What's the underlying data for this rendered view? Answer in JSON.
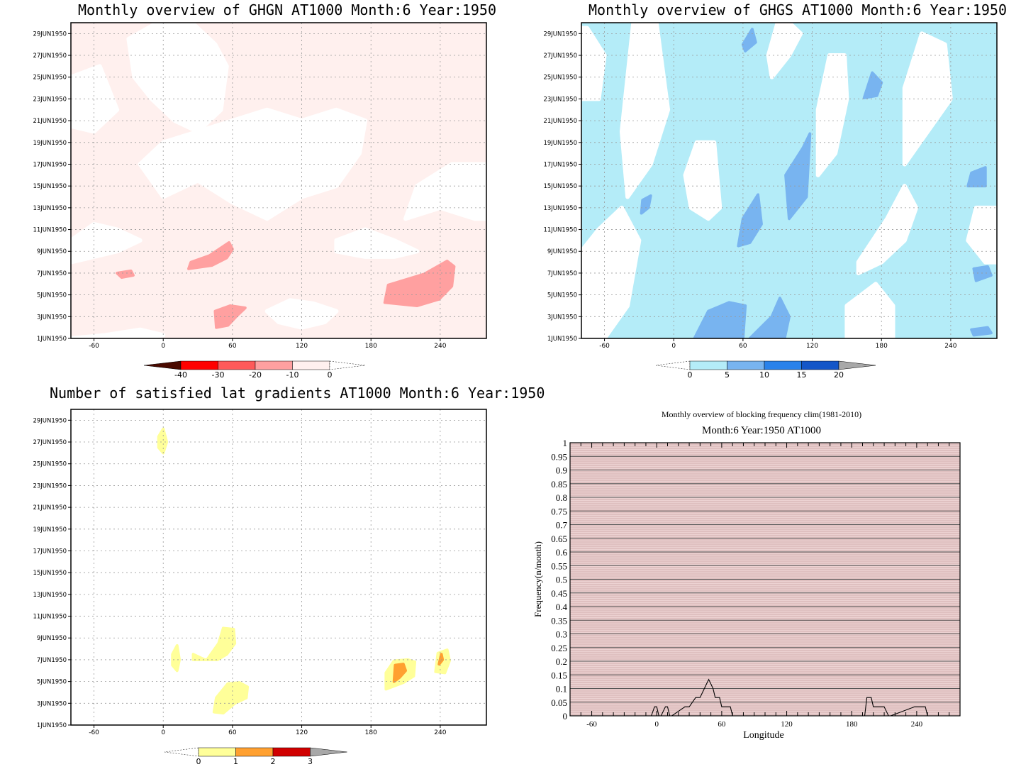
{
  "chart_data": [
    {
      "type": "heatmap",
      "title": "Monthly overview of GHGN AT1000 Month:6 Year:1950",
      "x_ticks": [
        -60,
        0,
        60,
        120,
        180,
        240
      ],
      "y_ticks": [
        "1JUN1950",
        "3JUN1950",
        "5JUN1950",
        "7JUN1950",
        "9JUN1950",
        "11JUN1950",
        "13JUN1950",
        "15JUN1950",
        "17JUN1950",
        "19JUN1950",
        "21JUN1950",
        "23JUN1950",
        "25JUN1950",
        "27JUN1950",
        "29JUN1950"
      ],
      "xlim": [
        -80,
        280
      ],
      "ylim": [
        1,
        30
      ],
      "grid": true,
      "colorbar": {
        "labels": [
          "-40",
          "-30",
          "-20",
          "-10",
          "0"
        ],
        "colors": [
          "#4a0a00",
          "#ff0000",
          "#ff5a5a",
          "#ffa0a0",
          "#fff0ee"
        ]
      },
      "regions": [
        {
          "level": "-10",
          "color": "#ffa0a0",
          "x": [
            40,
            57,
            60,
            55,
            42,
            22,
            24
          ],
          "y": [
            8.6,
            9.8,
            9.2,
            8.4,
            7.7,
            7.4,
            8.0
          ]
        },
        {
          "level": "-10",
          "color": "#ffa0a0",
          "x": [
            -40,
            -28,
            -26,
            -36
          ],
          "y": [
            7.0,
            7.2,
            6.8,
            6.6
          ]
        },
        {
          "level": "-10",
          "color": "#ffa0a0",
          "x": [
            45,
            58,
            71,
            64,
            56,
            46
          ],
          "y": [
            3.5,
            4.0,
            3.8,
            3.1,
            2.2,
            2.0
          ]
        },
        {
          "level": "-10",
          "color": "#ffa0a0",
          "x": [
            192,
            220,
            239,
            250,
            252,
            246,
            226,
            195
          ],
          "y": [
            4.3,
            4.0,
            4.6,
            5.8,
            7.6,
            8.1,
            6.9,
            5.9
          ]
        }
      ]
    },
    {
      "type": "heatmap",
      "title": "Monthly overview of GHGS AT1000 Month:6 Year:1950",
      "x_ticks": [
        -60,
        0,
        60,
        120,
        180,
        240
      ],
      "y_ticks": [
        "1JUN1950",
        "3JUN1950",
        "5JUN1950",
        "7JUN1950",
        "9JUN1950",
        "11JUN1950",
        "13JUN1950",
        "15JUN1950",
        "17JUN1950",
        "19JUN1950",
        "21JUN1950",
        "23JUN1950",
        "25JUN1950",
        "27JUN1950",
        "29JUN1950"
      ],
      "xlim": [
        -80,
        280
      ],
      "ylim": [
        1,
        30
      ],
      "grid": true,
      "colorbar": {
        "labels": [
          "0",
          "5",
          "10",
          "15",
          "20"
        ],
        "colors": [
          "#b4ecf8",
          "#78b4f0",
          "#2a82ea",
          "#1456c8",
          "#a8a8a8"
        ]
      },
      "regions": [
        {
          "level": "5",
          "color": "#78b4f0",
          "x": [
            18,
            30,
            48,
            62,
            60,
            42,
            30
          ],
          "y": [
            1.0,
            3.5,
            4.3,
            4.0,
            1.0,
            1.0,
            1.0
          ]
        },
        {
          "level": "5",
          "color": "#78b4f0",
          "x": [
            66,
            85,
            92,
            100,
            96,
            80,
            70
          ],
          "y": [
            1.0,
            3.0,
            4.7,
            3.0,
            1.0,
            1.0,
            1.0
          ]
        },
        {
          "level": "5",
          "color": "#78b4f0",
          "x": [
            56,
            66,
            76,
            73,
            60
          ],
          "y": [
            9.5,
            9.8,
            11.5,
            14.2,
            12.0
          ]
        },
        {
          "level": "5",
          "color": "#78b4f0",
          "x": [
            97,
            112,
            118,
            115,
            100
          ],
          "y": [
            16.0,
            18.5,
            19.8,
            14.0,
            12.0
          ]
        },
        {
          "level": "5",
          "color": "#78b4f0",
          "x": [
            165,
            176,
            180,
            172
          ],
          "y": [
            23.1,
            23.3,
            24.5,
            25.4
          ]
        },
        {
          "level": "5",
          "color": "#78b4f0",
          "x": [
            60,
            68,
            71,
            62
          ],
          "y": [
            28.0,
            29.4,
            28.2,
            27.4
          ]
        },
        {
          "level": "5",
          "color": "#78b4f0",
          "x": [
            255,
            270,
            270,
            258
          ],
          "y": [
            15.0,
            15.0,
            16.7,
            16.2
          ]
        },
        {
          "level": "5",
          "color": "#78b4f0",
          "x": [
            262,
            275,
            272,
            260
          ],
          "y": [
            6.3,
            6.8,
            7.6,
            7.4
          ]
        },
        {
          "level": "5",
          "color": "#78b4f0",
          "x": [
            260,
            275,
            272,
            258
          ],
          "y": [
            1.3,
            1.5,
            2.0,
            1.8
          ]
        },
        {
          "level": "5",
          "color": "#78b4f0",
          "x": [
            -28,
            -22,
            -20,
            -27
          ],
          "y": [
            12.5,
            13.0,
            14.1,
            13.7
          ]
        }
      ]
    },
    {
      "type": "heatmap",
      "title": "Number of satisfied lat gradients AT1000 Month:6 Year:1950",
      "x_ticks": [
        -60,
        0,
        60,
        120,
        180,
        240
      ],
      "y_ticks": [
        "1JUN1950",
        "3JUN1950",
        "5JUN1950",
        "7JUN1950",
        "9JUN1950",
        "11JUN1950",
        "13JUN1950",
        "15JUN1950",
        "17JUN1950",
        "19JUN1950",
        "21JUN1950",
        "23JUN1950",
        "25JUN1950",
        "27JUN1950",
        "29JUN1950"
      ],
      "xlim": [
        -80,
        280
      ],
      "ylim": [
        1,
        30
      ],
      "grid": true,
      "colorbar": {
        "labels": [
          "0",
          "1",
          "2",
          "3"
        ],
        "colors": [
          "#ffff99",
          "#ffa030",
          "#d00000",
          "#a8a8a8"
        ]
      },
      "regions": [
        {
          "level": "1",
          "color": "#ffff99",
          "x": [
            -4,
            0,
            3,
            0,
            -4
          ],
          "y": [
            26.5,
            26.0,
            27.0,
            28.2,
            27.5
          ]
        },
        {
          "level": "1",
          "color": "#ffff99",
          "x": [
            26,
            38,
            48,
            52,
            61,
            62,
            55,
            47,
            36,
            26
          ],
          "y": [
            7.0,
            7.0,
            8.5,
            9.9,
            9.8,
            8.5,
            7.5,
            7.0,
            7.0,
            7.5
          ]
        },
        {
          "level": "1",
          "color": "#ffff99",
          "x": [
            8,
            12,
            14,
            12,
            8
          ],
          "y": [
            6.5,
            6.0,
            7.0,
            8.3,
            7.5
          ]
        },
        {
          "level": "1",
          "color": "#ffff99",
          "x": [
            44,
            52,
            62,
            72,
            73,
            66,
            56,
            46
          ],
          "y": [
            2.2,
            2.1,
            3.0,
            3.5,
            4.5,
            4.9,
            4.8,
            3.5
          ]
        },
        {
          "level": "1",
          "color": "#ffff99",
          "x": [
            193,
            208,
            217,
            218,
            212,
            200,
            193
          ],
          "y": [
            4.3,
            4.9,
            5.5,
            6.8,
            7.0,
            6.9,
            5.8
          ]
        },
        {
          "level": "1",
          "color": "#ffff99",
          "x": [
            236,
            244,
            248,
            246,
            238
          ],
          "y": [
            5.9,
            5.8,
            6.9,
            7.9,
            7.6
          ]
        },
        {
          "level": "2",
          "color": "#ffa030",
          "x": [
            200,
            205,
            210,
            208,
            201
          ],
          "y": [
            5.0,
            5.4,
            6.0,
            6.6,
            6.5
          ]
        },
        {
          "level": "2",
          "color": "#ffa030",
          "x": [
            239,
            242,
            241
          ],
          "y": [
            6.6,
            7.0,
            7.5
          ]
        }
      ]
    },
    {
      "type": "line",
      "title": "Monthly overview of blocking frequency clim(1981-2010)",
      "subtitle": "Month:6 Year:1950  AT1000",
      "xlabel": "Longitude",
      "ylabel": "Frequency(n/month)",
      "x_ticks": [
        "-60",
        "0",
        "60",
        "120",
        "180",
        "240"
      ],
      "y_ticks": [
        "0",
        "0.05",
        "0.1",
        "0.15",
        "0.2",
        "0.25",
        "0.3",
        "0.35",
        "0.4",
        "0.45",
        "0.5",
        "0.55",
        "0.6",
        "0.65",
        "0.7",
        "0.75",
        "0.8",
        "0.85",
        "0.9",
        "0.95",
        "1"
      ],
      "xlim": [
        -80,
        280
      ],
      "ylim": [
        0,
        1
      ],
      "series": [
        {
          "x": [
            -5,
            -2,
            0,
            2,
            4,
            8,
            10,
            12,
            14,
            26,
            30,
            36,
            40,
            44,
            46,
            48,
            50,
            52,
            54,
            58,
            60,
            62,
            64,
            66,
            68,
            70,
            192,
            194,
            196,
            198,
            200,
            206,
            210,
            214,
            216,
            238,
            240,
            244,
            248,
            250
          ],
          "y": [
            0,
            0.033,
            0.033,
            0,
            0,
            0.033,
            0.033,
            0,
            0,
            0.033,
            0.033,
            0.067,
            0.067,
            0.1,
            0.117,
            0.133,
            0.117,
            0.1,
            0.067,
            0.067,
            0.033,
            0.033,
            0.033,
            0.033,
            0.033,
            0,
            0,
            0.067,
            0.067,
            0.067,
            0.033,
            0.033,
            0.033,
            0,
            0,
            0.033,
            0.033,
            0.033,
            0.033,
            0
          ]
        }
      ]
    }
  ]
}
